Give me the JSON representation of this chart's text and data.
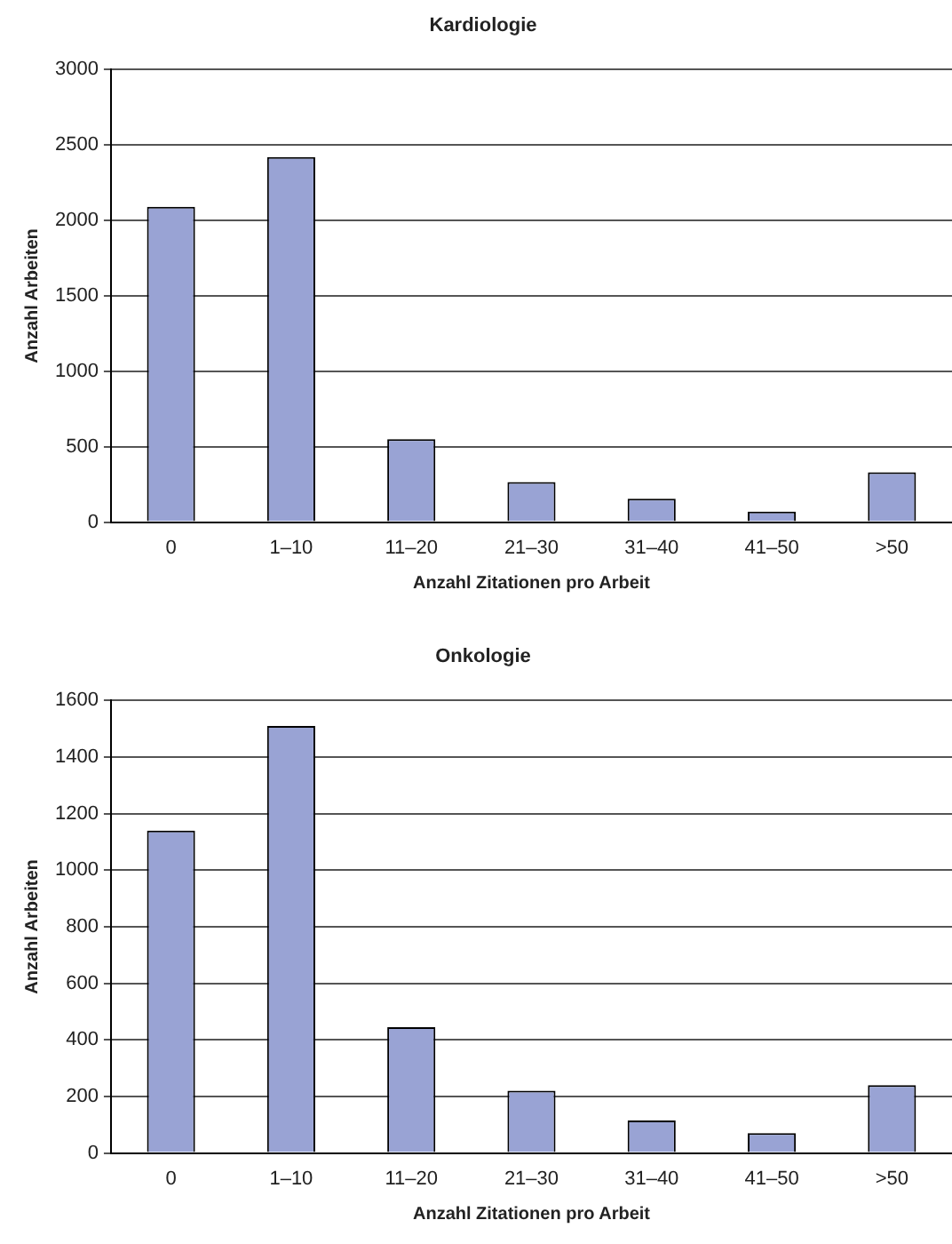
{
  "chart_data": [
    {
      "type": "bar",
      "title": "Kardiologie",
      "xlabel": "Anzahl Zitationen pro Arbeit",
      "ylabel": "Anzahl Arbeiten",
      "categories": [
        "0",
        "1–10",
        "11–20",
        "21–30",
        "31–40",
        "41–50",
        ">50"
      ],
      "values": [
        2090,
        2420,
        550,
        265,
        155,
        70,
        330
      ],
      "color": "#99a3d4",
      "ylim": [
        0,
        3000
      ],
      "yticks": [
        0,
        500,
        1000,
        1500,
        2000,
        2500,
        3000
      ],
      "grid": "y",
      "legend": false
    },
    {
      "type": "bar",
      "title": "Onkologie",
      "xlabel": "Anzahl Zitationen pro Arbeit",
      "ylabel": "Anzahl Arbeiten",
      "categories": [
        "0",
        "1–10",
        "11–20",
        "21–30",
        "31–40",
        "41–50",
        ">50"
      ],
      "values": [
        1140,
        1510,
        445,
        220,
        115,
        70,
        240
      ],
      "color": "#99a3d4",
      "ylim": [
        0,
        1600
      ],
      "yticks": [
        0,
        200,
        400,
        600,
        800,
        1000,
        1200,
        1400,
        1600
      ],
      "grid": "y",
      "legend": false
    }
  ]
}
